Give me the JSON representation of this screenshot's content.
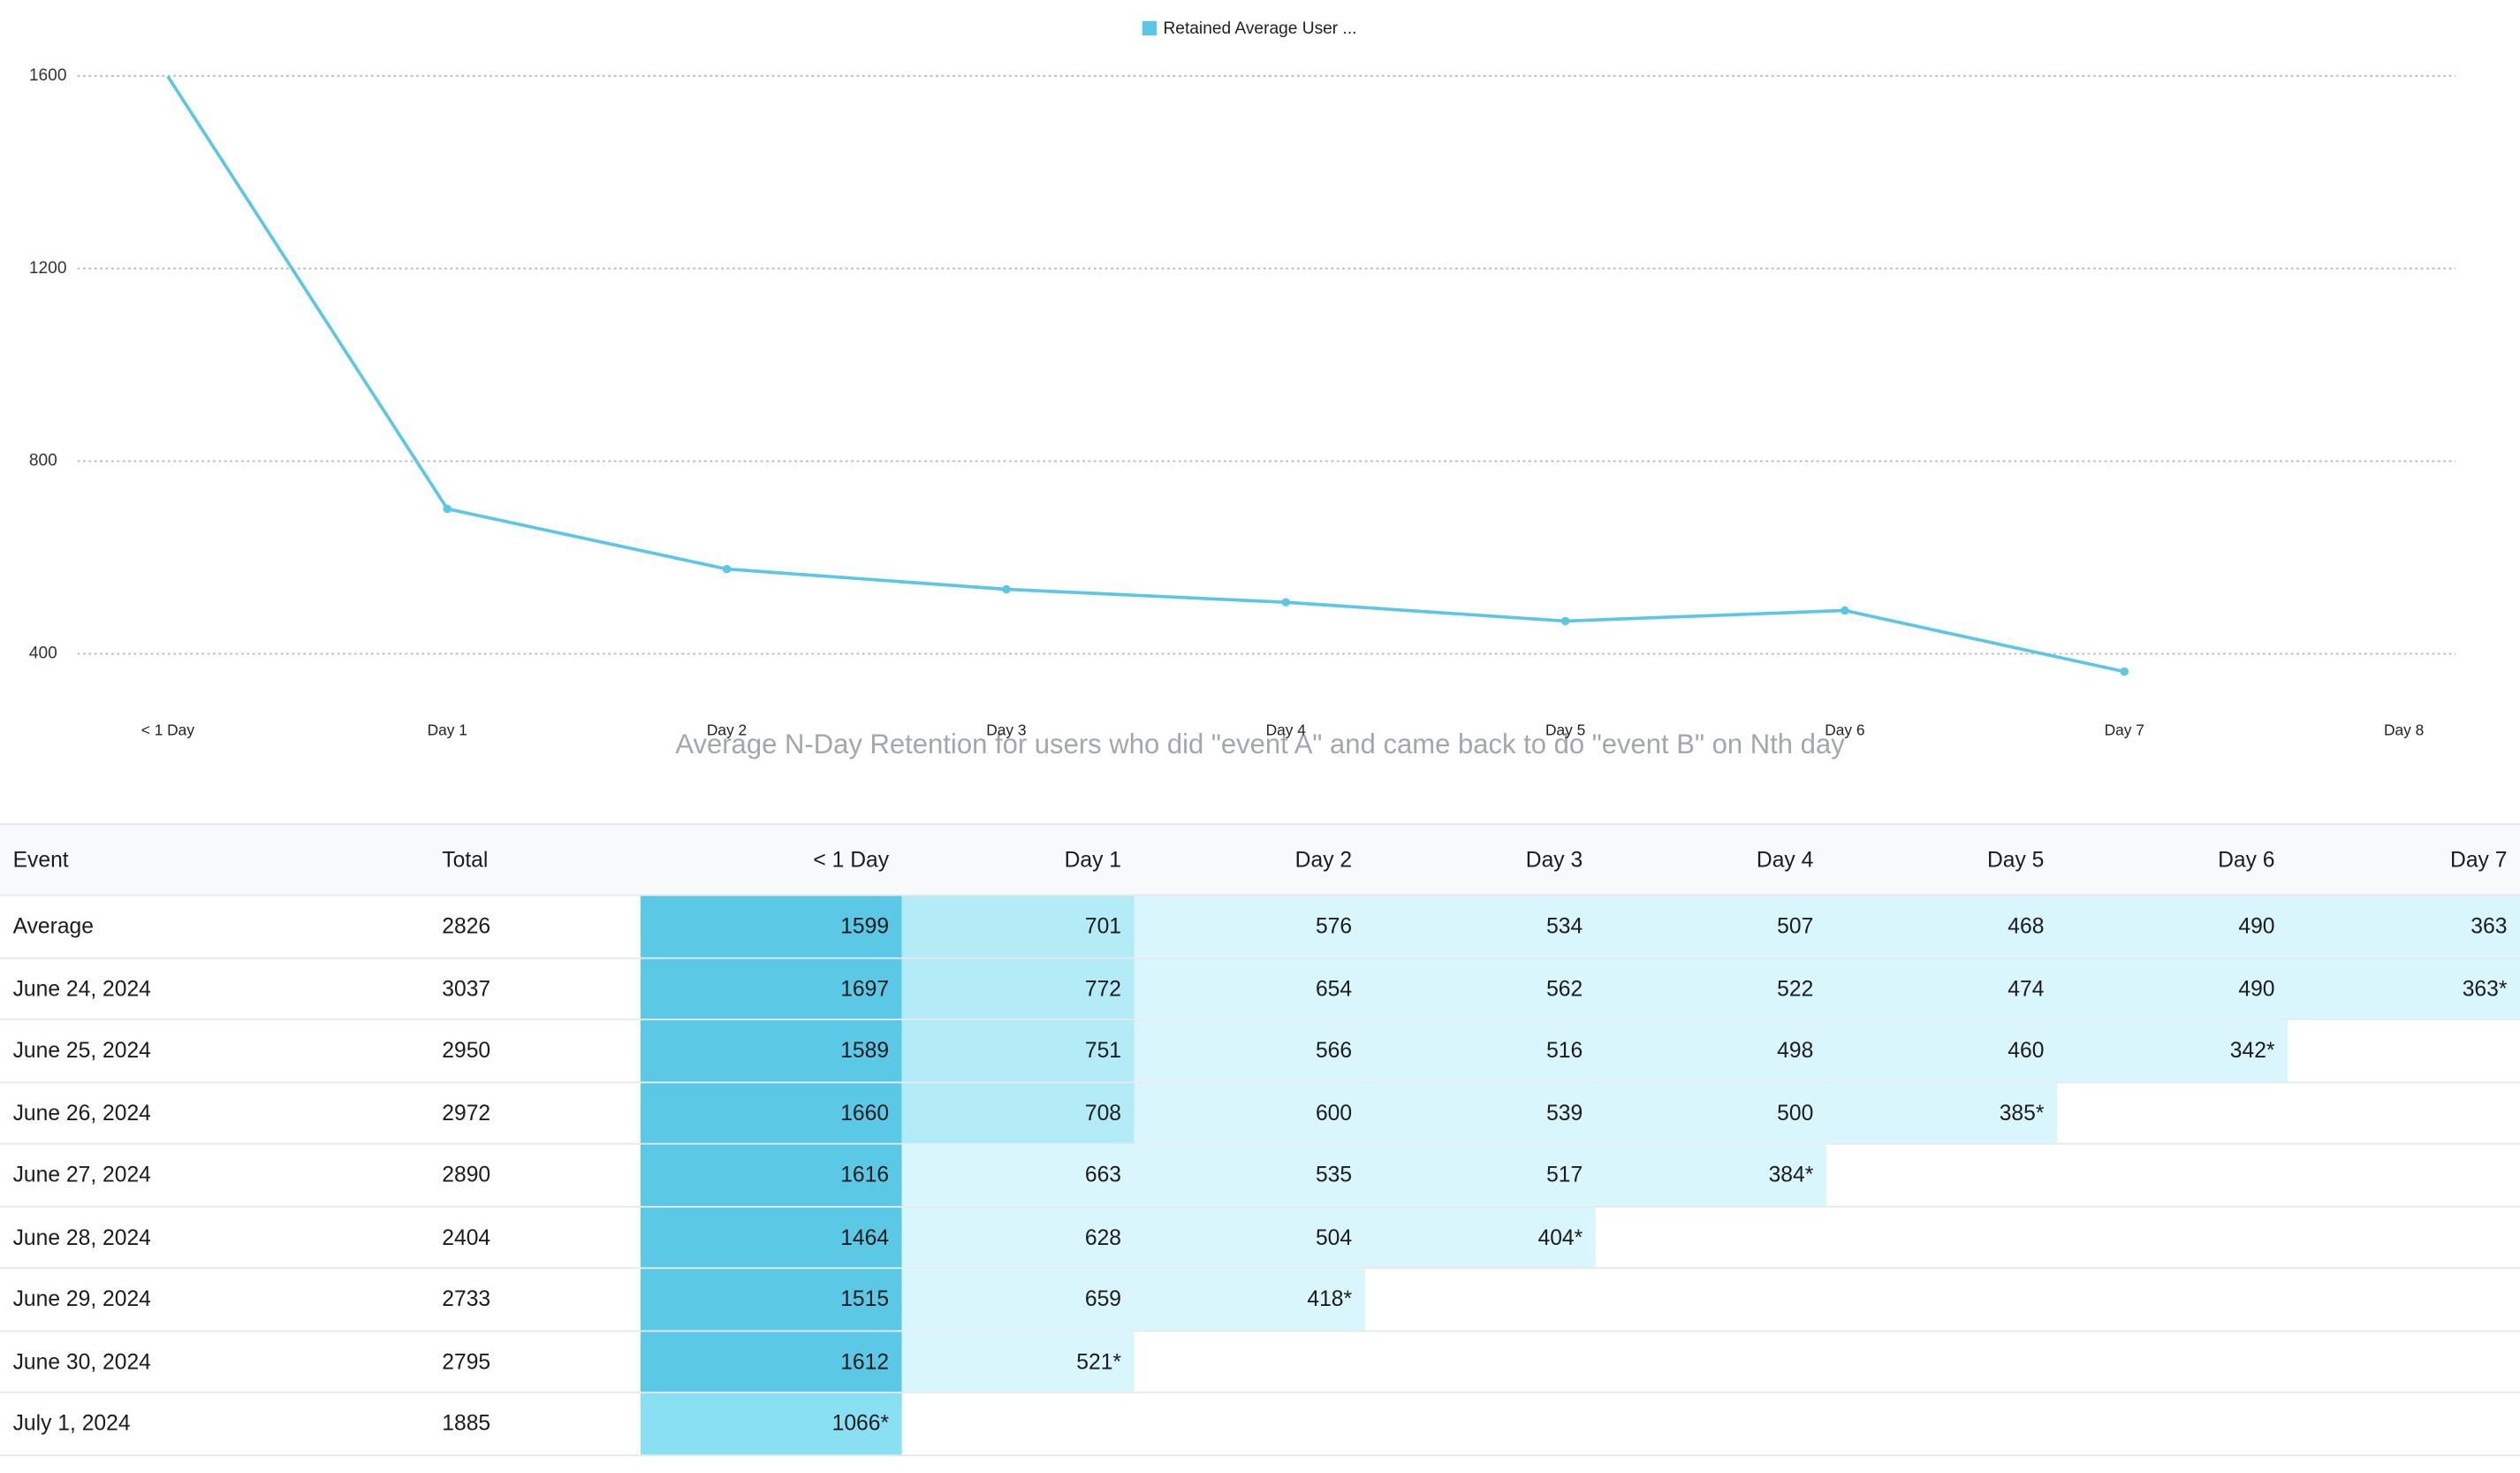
{
  "chart_data": {
    "type": "line",
    "title": "Average N-Day Retention for users who did \"event A\" and came back to do \"event B\" on Nth day",
    "categories": [
      "< 1 Day",
      "Day 1",
      "Day 2",
      "Day 3",
      "Day 4",
      "Day 5",
      "Day 6",
      "Day 7",
      "Day 8"
    ],
    "series": [
      {
        "name": "Retained Average User ...",
        "color": "#5bc6e6",
        "values": [
          1599,
          701,
          576,
          534,
          507,
          468,
          490,
          363,
          null
        ]
      }
    ],
    "ylim": [
      300,
      1600
    ],
    "yticks": [
      400,
      800,
      1200,
      1600
    ],
    "grid": true,
    "legend": "top"
  },
  "table": {
    "header": [
      "Event",
      "Total",
      "< 1 Day",
      "Day 1",
      "Day 2",
      "Day 3",
      "Day 4",
      "Day 5",
      "Day 6",
      "Day 7"
    ],
    "rows": [
      {
        "cells": [
          "Average",
          "2826",
          "1599",
          "701",
          "576",
          "534",
          "507",
          "468",
          "490",
          "363"
        ],
        "colors": [
          "#5bc8e6",
          "#b3ebf7",
          "#d8f6fb",
          "#d8f6fb",
          "#d8f6fb",
          "#d8f6fb",
          "#d8f6fb",
          "#d8f6fb"
        ]
      },
      {
        "cells": [
          "June 24, 2024",
          "3037",
          "1697",
          "772",
          "654",
          "562",
          "522",
          "474",
          "490",
          "363*"
        ],
        "colors": [
          "#5bc8e6",
          "#b3ebf7",
          "#d8f6fb",
          "#d8f6fb",
          "#d8f6fb",
          "#d8f6fb",
          "#d8f6fb",
          "#d8f6fb"
        ]
      },
      {
        "cells": [
          "June 25, 2024",
          "2950",
          "1589",
          "751",
          "566",
          "516",
          "498",
          "460",
          "342*"
        ],
        "colors": [
          "#5bc8e6",
          "#b3ebf7",
          "#d8f6fb",
          "#d8f6fb",
          "#d8f6fb",
          "#d8f6fb",
          "#d8f6fb"
        ]
      },
      {
        "cells": [
          "June 26, 2024",
          "2972",
          "1660",
          "708",
          "600",
          "539",
          "500",
          "385*"
        ],
        "colors": [
          "#5bc8e6",
          "#b3ebf7",
          "#d8f6fb",
          "#d8f6fb",
          "#d8f6fb",
          "#d8f6fb"
        ]
      },
      {
        "cells": [
          "June 27, 2024",
          "2890",
          "1616",
          "663",
          "535",
          "517",
          "384*"
        ],
        "colors": [
          "#5bc8e6",
          "#d8f6fb",
          "#d8f6fb",
          "#d8f6fb",
          "#d8f6fb"
        ]
      },
      {
        "cells": [
          "June 28, 2024",
          "2404",
          "1464",
          "628",
          "504",
          "404*"
        ],
        "colors": [
          "#5bc8e6",
          "#d8f6fb",
          "#d8f6fb",
          "#d8f6fb"
        ]
      },
      {
        "cells": [
          "June 29, 2024",
          "2733",
          "1515",
          "659",
          "418*"
        ],
        "colors": [
          "#5bc8e6",
          "#d8f6fb",
          "#d8f6fb"
        ]
      },
      {
        "cells": [
          "June 30, 2024",
          "2795",
          "1612",
          "521*"
        ],
        "colors": [
          "#5bc8e6",
          "#d8f6fb"
        ]
      },
      {
        "cells": [
          "July 1, 2024",
          "1885",
          "1066*"
        ],
        "colors": [
          "#8ae0f3"
        ]
      }
    ]
  }
}
